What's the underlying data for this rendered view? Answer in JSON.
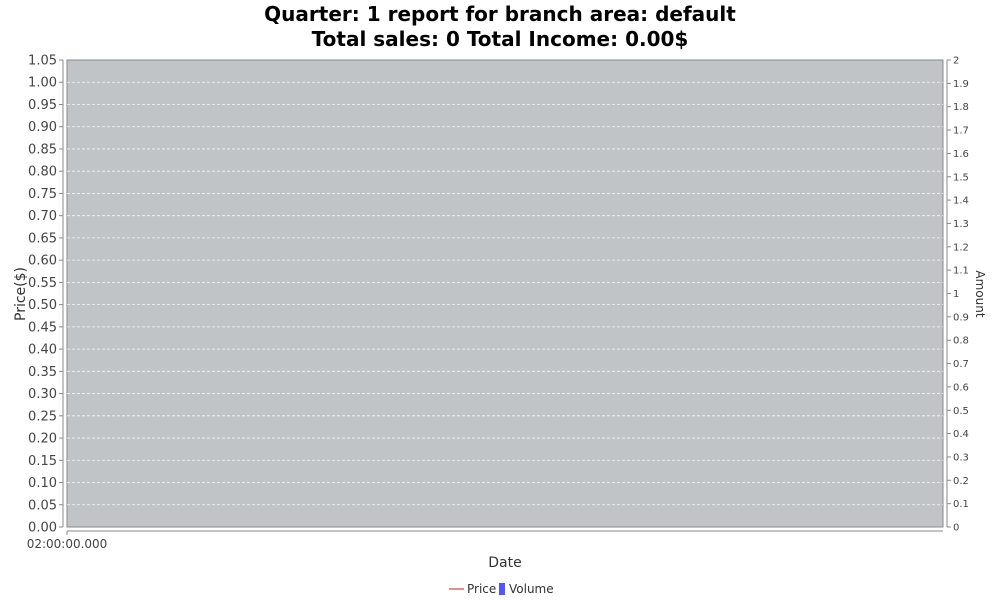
{
  "chart_data": {
    "type": "line",
    "title_line1": "Quarter: 1 report for branch area: default",
    "title_line2": "Total sales: 0 Total Income: 0.00$",
    "xlabel": "Date",
    "ylabel": "Price($)",
    "y2label": "Amount",
    "x_ticks": [
      "02:00:00.000"
    ],
    "y_ticks": [
      "0.00",
      "0.05",
      "0.10",
      "0.15",
      "0.20",
      "0.25",
      "0.30",
      "0.35",
      "0.40",
      "0.45",
      "0.50",
      "0.55",
      "0.60",
      "0.65",
      "0.70",
      "0.75",
      "0.80",
      "0.85",
      "0.90",
      "0.95",
      "1.00",
      "1.05"
    ],
    "y2_ticks": [
      "0",
      "0.1",
      "0.2",
      "0.3",
      "0.4",
      "0.5",
      "0.6",
      "0.7",
      "0.8",
      "0.9",
      "1",
      "1.1",
      "1.2",
      "1.3",
      "1.4",
      "1.5",
      "1.6",
      "1.7",
      "1.8",
      "1.9",
      "2"
    ],
    "ylim": [
      0,
      1.05
    ],
    "y2lim": [
      0,
      2
    ],
    "grid": true,
    "legend_position": "bottom",
    "series": [
      {
        "name": "Price",
        "axis": "left",
        "kind": "line",
        "values": []
      },
      {
        "name": "Volume",
        "axis": "right",
        "kind": "bar",
        "values": []
      }
    ],
    "colors": {
      "plot_background": "#c0c4c7",
      "gridline": "#ffffff",
      "price": "#e06666",
      "volume": "#5555ff"
    }
  }
}
